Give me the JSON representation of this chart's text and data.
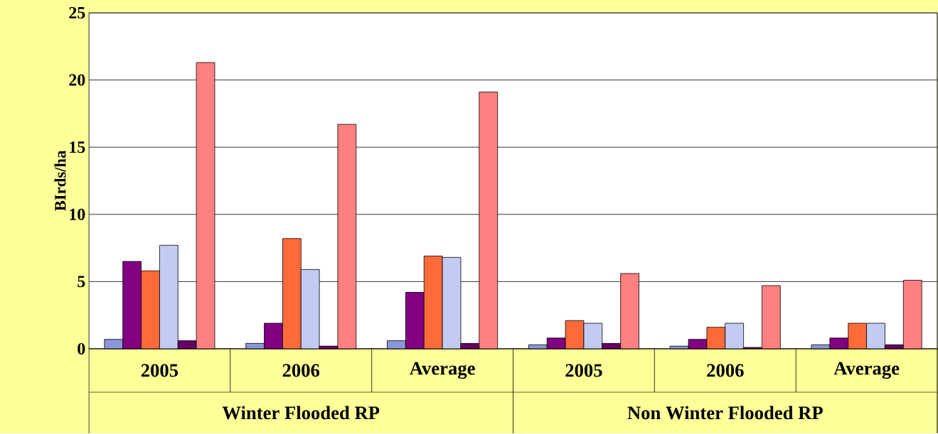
{
  "chart_data": {
    "type": "bar",
    "ylabel": "BIrds/ha",
    "categories": [
      "2005",
      "2006",
      "Average",
      "2005",
      "2006",
      "Average"
    ],
    "annotations": [
      "Winter Flooded RP",
      "Non Winter Flooded RP"
    ],
    "series": [
      {
        "color": "#8a96d8",
        "values": [
          0.7,
          0.4,
          0.6,
          0.3,
          0.2,
          0.3
        ]
      },
      {
        "color": "#800080",
        "values": [
          6.5,
          1.9,
          4.2,
          0.8,
          0.7,
          0.8
        ]
      },
      {
        "color": "#ff6a3a",
        "values": [
          5.8,
          8.2,
          6.9,
          2.1,
          1.6,
          1.9
        ]
      },
      {
        "color": "#c4cbf2",
        "values": [
          7.7,
          5.9,
          6.8,
          1.9,
          1.9,
          1.9
        ]
      },
      {
        "color": "#660066",
        "values": [
          0.6,
          0.2,
          0.4,
          0.4,
          0.1,
          0.3
        ]
      },
      {
        "color": "#ff8080",
        "values": [
          21.3,
          16.7,
          19.1,
          5.6,
          4.7,
          5.1
        ]
      }
    ],
    "ylim": [
      0,
      25
    ],
    "yticks": [
      0,
      5,
      10,
      15,
      20,
      25
    ],
    "grid": "y"
  }
}
